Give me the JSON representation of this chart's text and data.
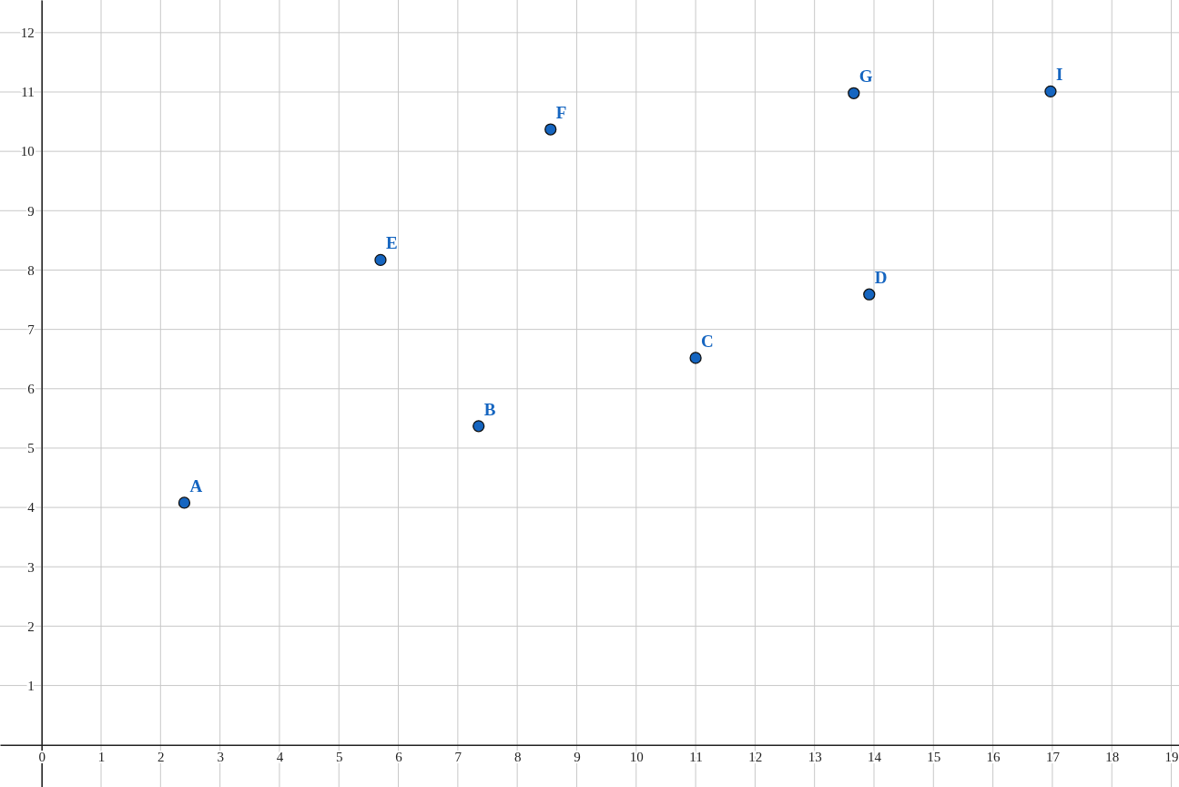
{
  "chart_data": {
    "type": "scatter",
    "x": [
      2.4,
      7.35,
      11.0,
      13.92,
      5.7,
      8.56,
      13.66,
      16.97
    ],
    "values": [
      4.08,
      5.37,
      6.52,
      7.59,
      8.17,
      10.37,
      10.98,
      11.01
    ],
    "color": "#1565c0",
    "marker": "circle",
    "grid": true,
    "xlim": [
      -0.7,
      19.13
    ],
    "ylim": [
      -0.71,
      12.55
    ],
    "xticks": [
      0,
      1,
      2,
      3,
      4,
      5,
      6,
      7,
      8,
      9,
      10,
      11,
      12,
      13,
      14,
      15,
      16,
      17,
      18,
      19
    ],
    "yticks": [
      1,
      2,
      3,
      4,
      5,
      6,
      7,
      8,
      9,
      10,
      11,
      12
    ],
    "annotations": [
      {
        "text": "A",
        "x": 2.4,
        "y": 4.08
      },
      {
        "text": "B",
        "x": 7.35,
        "y": 5.37
      },
      {
        "text": "C",
        "x": 11.0,
        "y": 6.52
      },
      {
        "text": "D",
        "x": 13.92,
        "y": 7.59
      },
      {
        "text": "E",
        "x": 5.7,
        "y": 8.17
      },
      {
        "text": "F",
        "x": 8.56,
        "y": 10.37
      },
      {
        "text": "G",
        "x": 13.66,
        "y": 10.98
      },
      {
        "text": "I",
        "x": 16.97,
        "y": 11.01
      }
    ]
  }
}
